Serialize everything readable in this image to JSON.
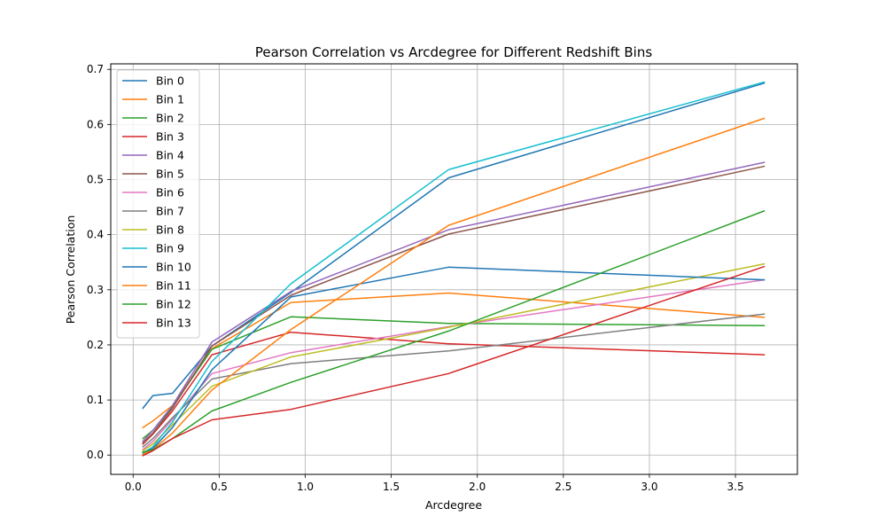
{
  "chart_data": {
    "type": "line",
    "title": "Pearson Correlation vs Arcdegree for Different Redshift Bins",
    "xlabel": "Arcdegree",
    "ylabel": "Pearson Correlation",
    "xlim": [
      -0.13,
      3.86
    ],
    "ylim": [
      -0.035,
      0.71
    ],
    "xticks": [
      0.0,
      0.5,
      1.0,
      1.5,
      2.0,
      2.5,
      3.0,
      3.5
    ],
    "xtick_labels": [
      "0.0",
      "0.5",
      "1.0",
      "1.5",
      "2.0",
      "2.5",
      "3.0",
      "3.5"
    ],
    "yticks": [
      0.0,
      0.1,
      0.2,
      0.3,
      0.4,
      0.5,
      0.6,
      0.7
    ],
    "ytick_labels": [
      "0.0",
      "0.1",
      "0.2",
      "0.3",
      "0.4",
      "0.5",
      "0.6",
      "0.7"
    ],
    "grid": true,
    "legend_position": "upper-left",
    "x": [
      0.057,
      0.115,
      0.229,
      0.458,
      0.917,
      1.833,
      3.667
    ],
    "series": [
      {
        "name": "Bin 0",
        "color": "#1f77b4",
        "values": [
          0.085,
          0.108,
          0.112,
          0.198,
          0.295,
          0.503,
          0.675
        ]
      },
      {
        "name": "Bin 1",
        "color": "#ff7f0e",
        "values": [
          0.05,
          0.062,
          0.09,
          0.193,
          0.277,
          0.294,
          0.25
        ]
      },
      {
        "name": "Bin 2",
        "color": "#2ca02c",
        "values": [
          0.03,
          0.045,
          0.088,
          0.192,
          0.251,
          0.239,
          0.235
        ]
      },
      {
        "name": "Bin 3",
        "color": "#d62728",
        "values": [
          0.02,
          0.038,
          0.08,
          0.182,
          0.223,
          0.202,
          0.182
        ]
      },
      {
        "name": "Bin 4",
        "color": "#9467bd",
        "values": [
          0.025,
          0.045,
          0.09,
          0.205,
          0.297,
          0.409,
          0.531
        ]
      },
      {
        "name": "Bin 5",
        "color": "#8c564b",
        "values": [
          0.022,
          0.04,
          0.085,
          0.198,
          0.29,
          0.401,
          0.524
        ]
      },
      {
        "name": "Bin 6",
        "color": "#e377c2",
        "values": [
          0.01,
          0.025,
          0.065,
          0.148,
          0.186,
          0.233,
          0.318
        ]
      },
      {
        "name": "Bin 7",
        "color": "#7f7f7f",
        "values": [
          0.015,
          0.03,
          0.068,
          0.138,
          0.166,
          0.189,
          0.256
        ]
      },
      {
        "name": "Bin 8",
        "color": "#bcbd22",
        "values": [
          0.008,
          0.02,
          0.055,
          0.125,
          0.178,
          0.232,
          0.347
        ]
      },
      {
        "name": "Bin 9",
        "color": "#17becf",
        "values": [
          0.003,
          0.015,
          0.06,
          0.17,
          0.311,
          0.518,
          0.677
        ]
      },
      {
        "name": "Bin 10",
        "color": "#1f77b4",
        "values": [
          0.005,
          0.012,
          0.05,
          0.155,
          0.287,
          0.341,
          0.318
        ]
      },
      {
        "name": "Bin 11",
        "color": "#ff7f0e",
        "values": [
          0.001,
          0.01,
          0.04,
          0.118,
          0.228,
          0.417,
          0.611
        ]
      },
      {
        "name": "Bin 12",
        "color": "#2ca02c",
        "values": [
          0.005,
          0.01,
          0.03,
          0.08,
          0.132,
          0.225,
          0.443
        ]
      },
      {
        "name": "Bin 13",
        "color": "#d62728",
        "values": [
          -0.001,
          0.008,
          0.03,
          0.064,
          0.083,
          0.148,
          0.342
        ]
      }
    ]
  }
}
